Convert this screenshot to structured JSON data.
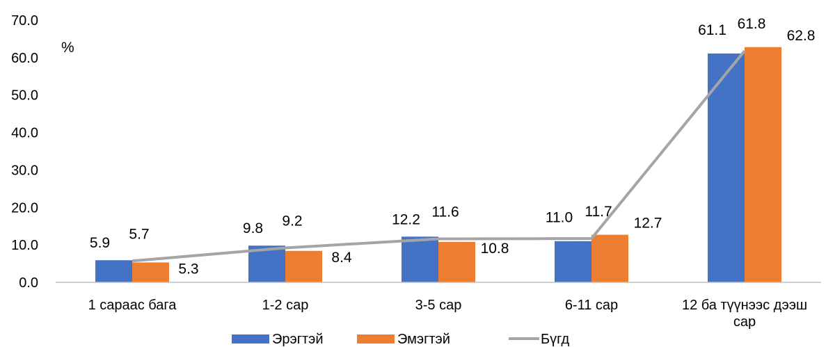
{
  "chart_data": {
    "type": "bar",
    "unit_label": "%",
    "categories": [
      "1 сараас бага",
      "1-2 сар",
      "3-5 сар",
      "6-11 сар",
      "12 ба түүнээс дээш сар"
    ],
    "series": [
      {
        "name": "Эрэгтэй",
        "kind": "bar",
        "color": "#4472C4",
        "values": [
          5.9,
          9.8,
          12.2,
          11.0,
          61.1
        ]
      },
      {
        "name": "Эмэгтэй",
        "kind": "bar",
        "color": "#ED7D31",
        "values": [
          5.3,
          8.4,
          10.8,
          12.7,
          62.8
        ]
      },
      {
        "name": "Бүгд",
        "kind": "line",
        "color": "#A5A5A5",
        "values": [
          5.7,
          9.2,
          11.6,
          11.7,
          61.8
        ]
      }
    ],
    "ylim": [
      0,
      70
    ],
    "yticks": [
      "0.0",
      "10.0",
      "20.0",
      "30.0",
      "40.0",
      "50.0",
      "60.0",
      "70.0"
    ],
    "grid": false,
    "legend_position": "bottom"
  }
}
